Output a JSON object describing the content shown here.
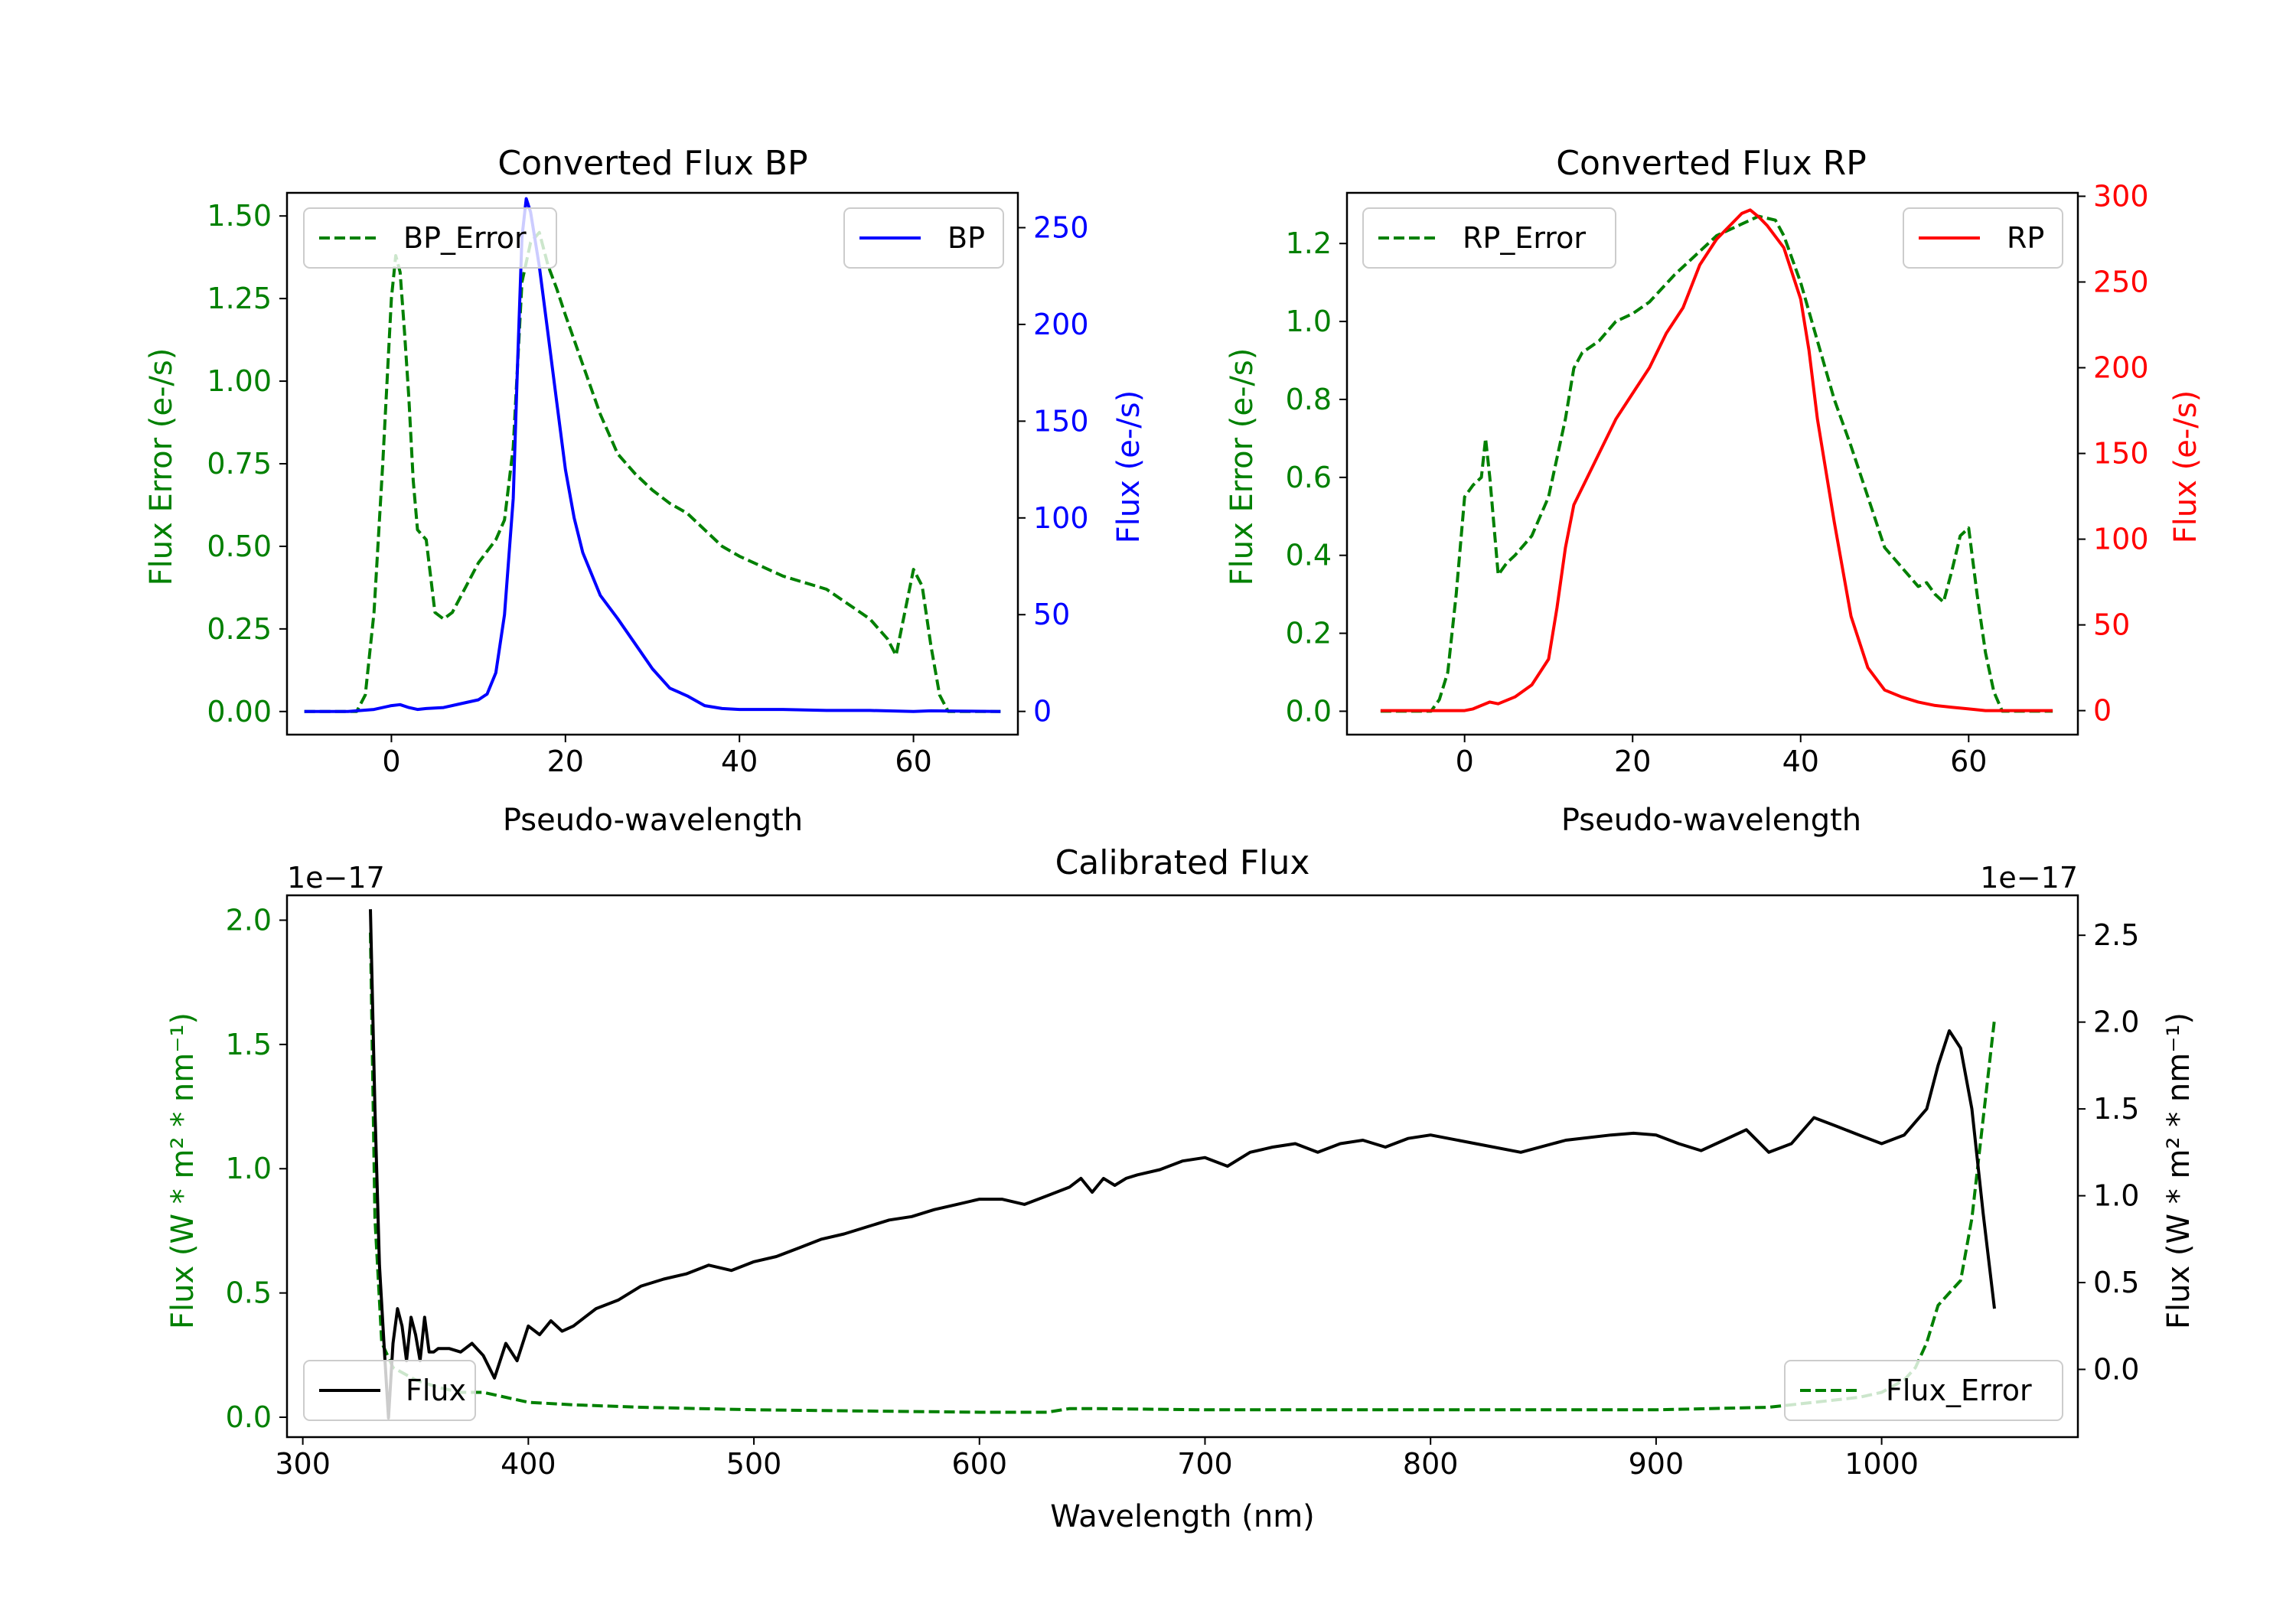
{
  "chart_data": [
    {
      "type": "line",
      "title": "Converted Flux BP",
      "xlabel": "Pseudo-wavelength",
      "ylabel_left": "Flux Error (e-/s)",
      "ylabel_right": "Flux (e-/s)",
      "xlim": [
        -12,
        72
      ],
      "ylim_left": [
        -0.07,
        1.57
      ],
      "ylim_right": [
        -12,
        268
      ],
      "xticks": [
        0,
        20,
        40,
        60
      ],
      "yticks_left": [
        "0.00",
        "0.25",
        "0.50",
        "0.75",
        "1.00",
        "1.25",
        "1.50"
      ],
      "yticks_right": [
        "0",
        "50",
        "100",
        "150",
        "200",
        "250"
      ],
      "colors": {
        "left": "#008000",
        "right": "#0000ff"
      },
      "series": [
        {
          "name": "BP_Error",
          "axis": "left",
          "style": "dashed",
          "color": "#008000",
          "x": [
            -10,
            -6,
            -4,
            -3,
            -2,
            -1,
            0,
            0.5,
            1,
            1.5,
            2,
            2.5,
            3,
            4,
            5,
            6,
            7,
            8,
            10,
            12,
            13,
            14,
            15,
            16,
            17,
            18,
            19,
            20,
            22,
            24,
            26,
            28,
            30,
            32,
            34,
            36,
            38,
            40,
            45,
            50,
            55,
            57,
            58,
            59,
            60,
            61,
            62,
            63,
            64,
            70
          ],
          "y": [
            0,
            0,
            0,
            0.05,
            0.3,
            0.75,
            1.25,
            1.38,
            1.33,
            1.15,
            0.95,
            0.7,
            0.55,
            0.52,
            0.3,
            0.28,
            0.3,
            0.35,
            0.45,
            0.52,
            0.58,
            0.8,
            1.3,
            1.42,
            1.45,
            1.35,
            1.28,
            1.2,
            1.05,
            0.9,
            0.78,
            0.72,
            0.67,
            0.63,
            0.6,
            0.55,
            0.5,
            0.47,
            0.41,
            0.37,
            0.28,
            0.22,
            0.17,
            0.3,
            0.43,
            0.38,
            0.2,
            0.05,
            0,
            0
          ]
        },
        {
          "name": "BP",
          "axis": "right",
          "style": "solid",
          "color": "#0000ff",
          "x": [
            -10,
            -5,
            -2,
            0,
            1,
            2,
            3,
            4,
            6,
            8,
            10,
            11,
            12,
            13,
            14,
            14.5,
            15,
            15.5,
            16,
            17,
            18,
            19,
            20,
            21,
            22,
            24,
            26,
            28,
            30,
            32,
            34,
            36,
            38,
            40,
            45,
            50,
            55,
            60,
            62,
            65,
            70
          ],
          "y": [
            0,
            0,
            1,
            3,
            3.5,
            2,
            1,
            1.5,
            2,
            4,
            6,
            9,
            20,
            50,
            110,
            180,
            245,
            265,
            258,
            230,
            195,
            160,
            125,
            100,
            82,
            60,
            48,
            35,
            22,
            12,
            8,
            3,
            1.5,
            1,
            1,
            0.5,
            0.5,
            0,
            0.3,
            0.2,
            0
          ]
        }
      ]
    },
    {
      "type": "line",
      "title": "Converted Flux RP",
      "xlabel": "Pseudo-wavelength",
      "ylabel_left": "Flux Error (e-/s)",
      "ylabel_right": "Flux (e-/s)",
      "xlim": [
        -14,
        73
      ],
      "ylim_left": [
        -0.06,
        1.33
      ],
      "ylim_right": [
        -14,
        302
      ],
      "xticks": [
        0,
        20,
        40,
        60
      ],
      "yticks_left": [
        "0.0",
        "0.2",
        "0.4",
        "0.6",
        "0.8",
        "1.0",
        "1.2"
      ],
      "yticks_right": [
        "0",
        "50",
        "100",
        "150",
        "200",
        "250",
        "300"
      ],
      "colors": {
        "left": "#008000",
        "right": "#ff0000"
      },
      "series": [
        {
          "name": "RP_Error",
          "axis": "left",
          "style": "dashed",
          "color": "#008000",
          "x": [
            -10,
            -4,
            -3,
            -2,
            -1,
            0,
            1,
            2,
            2.5,
            3,
            4,
            5,
            6,
            8,
            10,
            12,
            13,
            14,
            16,
            18,
            20,
            22,
            25,
            28,
            30,
            33,
            35,
            37,
            38,
            40,
            42,
            44,
            46,
            48,
            50,
            52,
            54,
            55,
            56,
            57,
            58,
            59,
            60,
            61,
            62,
            63,
            64,
            65,
            70
          ],
          "y": [
            0,
            0,
            0.03,
            0.1,
            0.3,
            0.55,
            0.58,
            0.6,
            0.7,
            0.6,
            0.35,
            0.38,
            0.4,
            0.45,
            0.55,
            0.75,
            0.88,
            0.92,
            0.95,
            1.0,
            1.02,
            1.05,
            1.12,
            1.18,
            1.22,
            1.25,
            1.27,
            1.26,
            1.22,
            1.1,
            0.95,
            0.8,
            0.68,
            0.55,
            0.42,
            0.37,
            0.32,
            0.33,
            0.3,
            0.28,
            0.36,
            0.45,
            0.47,
            0.3,
            0.15,
            0.05,
            0,
            0,
            0
          ]
        },
        {
          "name": "RP",
          "axis": "right",
          "style": "solid",
          "color": "#ff0000",
          "x": [
            -10,
            0,
            1,
            2,
            3,
            4,
            6,
            8,
            10,
            11,
            12,
            13,
            14,
            16,
            18,
            20,
            22,
            24,
            26,
            28,
            30,
            32,
            33,
            34,
            35,
            36,
            38,
            40,
            41,
            42,
            44,
            46,
            48,
            50,
            52,
            54,
            56,
            58,
            60,
            62,
            65,
            70
          ],
          "y": [
            0,
            0,
            1,
            3,
            5,
            4,
            8,
            15,
            30,
            60,
            95,
            120,
            130,
            150,
            170,
            185,
            200,
            220,
            235,
            260,
            275,
            285,
            290,
            292,
            288,
            283,
            270,
            240,
            210,
            170,
            110,
            55,
            25,
            12,
            8,
            5,
            3,
            2,
            1,
            0,
            0,
            0
          ]
        }
      ]
    },
    {
      "type": "line",
      "title": "Calibrated Flux",
      "xlabel": "Wavelength (nm)",
      "ylabel_left": "Flux (W * m² * nm⁻¹)",
      "ylabel_right": "Flux (W * m² * nm⁻¹)",
      "offset_left": "1e−17",
      "offset_right": "1e−17",
      "xlim": [
        293,
        1087
      ],
      "ylim_left": [
        -0.08,
        2.1
      ],
      "ylim_right": [
        -0.39,
        2.73
      ],
      "xticks": [
        "300",
        "400",
        "500",
        "600",
        "700",
        "800",
        "900",
        "1000"
      ],
      "yticks_left": [
        "0.0",
        "0.5",
        "1.0",
        "1.5",
        "2.0"
      ],
      "yticks_right": [
        "0.0",
        "0.5",
        "1.0",
        "1.5",
        "2.0",
        "2.5"
      ],
      "colors": {
        "left": "#008000",
        "right": "#000000"
      },
      "series": [
        {
          "name": "Flux_Error",
          "axis": "left",
          "style": "dashed",
          "color": "#008000",
          "x": [
            330,
            332,
            335,
            340,
            350,
            360,
            370,
            380,
            390,
            400,
            420,
            450,
            500,
            550,
            600,
            630,
            640,
            650,
            700,
            800,
            900,
            950,
            970,
            990,
            1000,
            1010,
            1015,
            1020,
            1025,
            1030,
            1035,
            1040,
            1045,
            1050
          ],
          "y": [
            1.95,
            0.8,
            0.3,
            0.2,
            0.15,
            0.12,
            0.1,
            0.1,
            0.08,
            0.06,
            0.05,
            0.04,
            0.03,
            0.025,
            0.02,
            0.02,
            0.035,
            0.035,
            0.03,
            0.03,
            0.03,
            0.04,
            0.06,
            0.08,
            0.1,
            0.15,
            0.2,
            0.3,
            0.45,
            0.5,
            0.55,
            0.8,
            1.2,
            1.6
          ]
        },
        {
          "name": "Flux",
          "axis": "right",
          "style": "solid",
          "color": "#000000",
          "x": [
            330,
            332,
            334,
            336,
            338,
            340,
            342,
            344,
            346,
            348,
            350,
            352,
            354,
            356,
            358,
            360,
            365,
            370,
            375,
            380,
            385,
            390,
            395,
            400,
            405,
            410,
            415,
            420,
            425,
            430,
            440,
            450,
            460,
            470,
            480,
            490,
            500,
            510,
            520,
            530,
            540,
            550,
            560,
            570,
            580,
            590,
            600,
            610,
            620,
            630,
            640,
            645,
            650,
            655,
            660,
            665,
            670,
            680,
            690,
            700,
            710,
            720,
            730,
            740,
            750,
            760,
            770,
            780,
            790,
            800,
            820,
            840,
            860,
            880,
            890,
            900,
            910,
            920,
            930,
            940,
            950,
            960,
            970,
            980,
            990,
            1000,
            1010,
            1020,
            1025,
            1030,
            1035,
            1040,
            1045,
            1050
          ],
          "y": [
            2.65,
            1.5,
            0.6,
            0.15,
            -0.28,
            0.15,
            0.35,
            0.25,
            0.05,
            0.3,
            0.2,
            0.05,
            0.3,
            0.1,
            0.1,
            0.12,
            0.12,
            0.1,
            0.15,
            0.08,
            -0.05,
            0.15,
            0.05,
            0.25,
            0.2,
            0.28,
            0.22,
            0.25,
            0.3,
            0.35,
            0.4,
            0.48,
            0.52,
            0.55,
            0.6,
            0.57,
            0.62,
            0.65,
            0.7,
            0.75,
            0.78,
            0.82,
            0.86,
            0.88,
            0.92,
            0.95,
            0.98,
            0.98,
            0.95,
            1.0,
            1.05,
            1.1,
            1.02,
            1.1,
            1.06,
            1.1,
            1.12,
            1.15,
            1.2,
            1.22,
            1.17,
            1.25,
            1.28,
            1.3,
            1.25,
            1.3,
            1.32,
            1.28,
            1.33,
            1.35,
            1.3,
            1.25,
            1.32,
            1.35,
            1.36,
            1.35,
            1.3,
            1.26,
            1.32,
            1.38,
            1.25,
            1.3,
            1.45,
            1.4,
            1.35,
            1.3,
            1.35,
            1.5,
            1.75,
            1.95,
            1.85,
            1.5,
            0.9,
            0.35
          ]
        }
      ]
    }
  ]
}
